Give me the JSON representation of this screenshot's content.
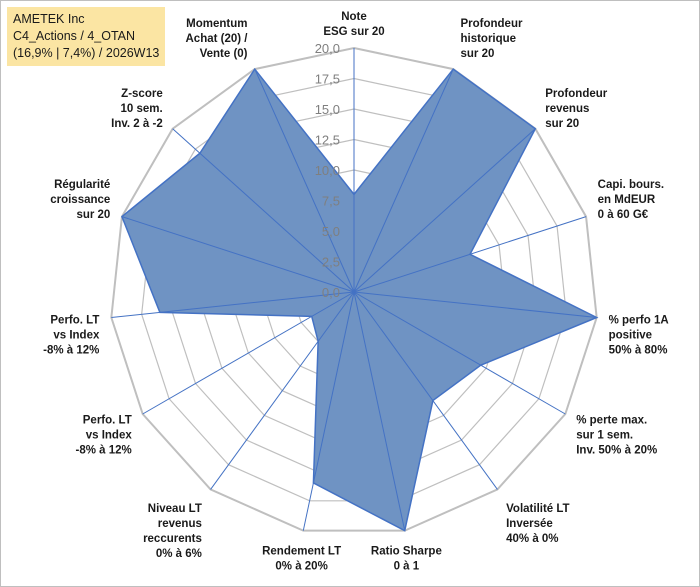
{
  "chart_data": {
    "type": "radar",
    "title": [
      "AMETEK Inc",
      "C4_Actions / 4_OTAN",
      "(16,9% | 7,4%) / 2026W13"
    ],
    "rmax": 20,
    "ticks": [
      "0,0",
      "2,5",
      "5,0",
      "7,5",
      "10,0",
      "12,5",
      "15,0",
      "17,5",
      "20,0"
    ],
    "tick_values": [
      0,
      2.5,
      5,
      7.5,
      10,
      12.5,
      15,
      17.5,
      20
    ],
    "axes": [
      {
        "label": [
          "Note",
          "ESG sur 20"
        ],
        "value": 8
      },
      {
        "label": [
          "Profondeur",
          "historique",
          "sur 20"
        ],
        "value": 20
      },
      {
        "label": [
          "Profondeur",
          "revenus",
          "sur 20"
        ],
        "value": 20
      },
      {
        "label": [
          "Capi. bours.",
          "en MdEUR",
          "0 à 60 G€"
        ],
        "value": 10
      },
      {
        "label": [
          "% perfo 1A",
          "positive",
          "50% à 80%"
        ],
        "value": 20
      },
      {
        "label": [
          "% perte max.",
          "sur 1 sem.",
          "Inv. 50% à 20%"
        ],
        "value": 12
      },
      {
        "label": [
          "Volatilité LT",
          "Inversée",
          "40% à 0%"
        ],
        "value": 11
      },
      {
        "label": [
          "Ratio Sharpe",
          "0 à 1"
        ],
        "value": 20
      },
      {
        "label": [
          "Rendement LT",
          "0% à 20%"
        ],
        "value": 16
      },
      {
        "label": [
          "Niveau LT",
          "revenus",
          "reccurents",
          "0% à 6%"
        ],
        "value": 5
      },
      {
        "label": [
          "Perfo. LT",
          "vs Index",
          "-8% à 12%"
        ],
        "value": 4
      },
      {
        "label": [
          "Perfo. LT",
          "vs Index",
          "-8% à 12%"
        ],
        "value": 16
      },
      {
        "label": [
          "Régularité",
          "croissance",
          "sur 20"
        ],
        "value": 20
      },
      {
        "label": [
          "Z-score",
          "10 sem.",
          "Inv. 2 à -2"
        ],
        "value": 17
      },
      {
        "label": [
          "Momentum",
          "Achat (20) /",
          "Vente (0)"
        ],
        "value": 20
      }
    ],
    "colors": {
      "fill": "#6f93c3",
      "stroke": "#4472c4",
      "grid": "#bfbfbf"
    }
  }
}
